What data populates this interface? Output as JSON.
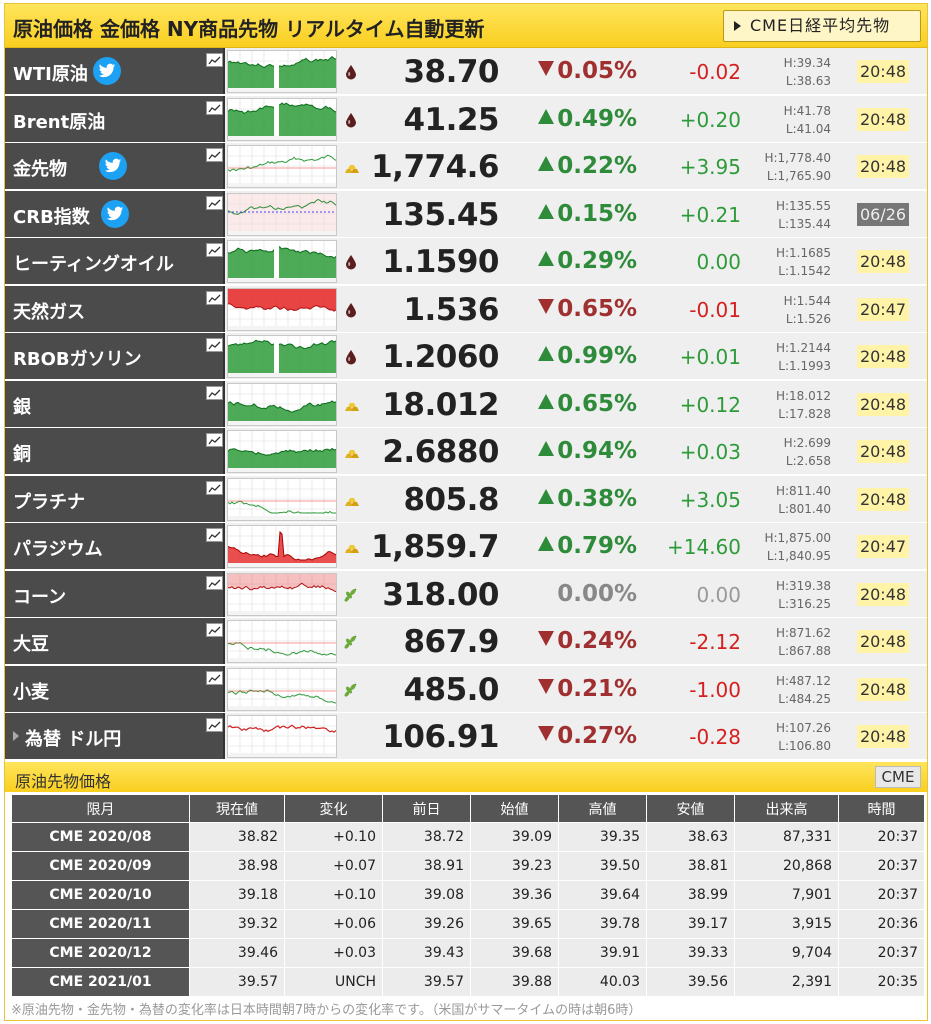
{
  "header": {
    "title": "原油価格 金価格 NY商品先物 リアルタイム自動更新",
    "cme_button": "CME日経平均先物"
  },
  "rows": [
    {
      "name": "WTI原油",
      "twitter": true,
      "icon": "oil-drop",
      "price": "38.70",
      "dir": "dn",
      "pct": "0.05%",
      "chg": "-0.02",
      "high": "H:39.34",
      "low": "L:38.63",
      "time": "20:48",
      "chart": "green"
    },
    {
      "name": "Brent原油",
      "twitter": false,
      "icon": "oil-drop",
      "price": "41.25",
      "dir": "up",
      "pct": "0.49%",
      "chg": "+0.20",
      "high": "H:41.78",
      "low": "L:41.04",
      "time": "20:48",
      "chart": "green"
    },
    {
      "name": "金先物",
      "twitter": true,
      "icon": "gold-bar",
      "price": "1,774.6",
      "dir": "up",
      "pct": "0.22%",
      "chg": "+3.95",
      "high": "H:1,778.40",
      "low": "L:1,765.90",
      "time": "20:48",
      "chart": "line"
    },
    {
      "name": "CRB指数",
      "twitter": true,
      "icon": "",
      "price": "135.45",
      "dir": "up",
      "pct": "0.15%",
      "chg": "+0.21",
      "high": "H:135.55",
      "low": "L:135.44",
      "time": "06/26",
      "chart": "crb",
      "closed": true
    },
    {
      "name": "ヒーティングオイル",
      "twitter": false,
      "icon": "oil-drop",
      "price": "1.1590",
      "dir": "up",
      "pct": "0.29%",
      "chg": "0.00",
      "high": "H:1.1685",
      "low": "L:1.1542",
      "time": "20:48",
      "chart": "green"
    },
    {
      "name": "天然ガス",
      "twitter": false,
      "icon": "oil-drop",
      "price": "1.536",
      "dir": "dn",
      "pct": "0.65%",
      "chg": "-0.01",
      "high": "H:1.544",
      "low": "L:1.526",
      "time": "20:47",
      "chart": "red"
    },
    {
      "name": "RBOBガソリン",
      "twitter": false,
      "icon": "oil-drop",
      "price": "1.2060",
      "dir": "up",
      "pct": "0.99%",
      "chg": "+0.01",
      "high": "H:1.2144",
      "low": "L:1.1993",
      "time": "20:48",
      "chart": "green"
    },
    {
      "name": "銀",
      "twitter": false,
      "icon": "gold-bar",
      "price": "18.012",
      "dir": "up",
      "pct": "0.65%",
      "chg": "+0.12",
      "high": "H:18.012",
      "low": "L:17.828",
      "time": "20:48",
      "chart": "greenlow"
    },
    {
      "name": "銅",
      "twitter": false,
      "icon": "gold-bar",
      "price": "2.6880",
      "dir": "up",
      "pct": "0.94%",
      "chg": "+0.03",
      "high": "H:2.699",
      "low": "L:2.658",
      "time": "20:48",
      "chart": "greenlow"
    },
    {
      "name": "プラチナ",
      "twitter": false,
      "icon": "gold-bar",
      "price": "805.8",
      "dir": "up",
      "pct": "0.38%",
      "chg": "+3.05",
      "high": "H:811.40",
      "low": "L:801.40",
      "time": "20:48",
      "chart": "line"
    },
    {
      "name": "パラジウム",
      "twitter": false,
      "icon": "gold-bar",
      "price": "1,859.7",
      "dir": "up",
      "pct": "0.79%",
      "chg": "+14.60",
      "high": "H:1,875.00",
      "low": "L:1,840.95",
      "time": "20:47",
      "chart": "redspike"
    },
    {
      "name": "コーン",
      "twitter": false,
      "icon": "leaf",
      "price": "318.00",
      "dir": "flat",
      "pct": "0.00%",
      "chg": "0.00",
      "high": "H:319.38",
      "low": "L:316.25",
      "time": "20:48",
      "chart": "redflat"
    },
    {
      "name": "大豆",
      "twitter": false,
      "icon": "leaf",
      "price": "867.9",
      "dir": "dn",
      "pct": "0.24%",
      "chg": "-2.12",
      "high": "H:871.62",
      "low": "L:867.88",
      "time": "20:48",
      "chart": "line"
    },
    {
      "name": "小麦",
      "twitter": false,
      "icon": "leaf",
      "price": "485.0",
      "dir": "dn",
      "pct": "0.21%",
      "chg": "-1.00",
      "high": "H:487.12",
      "low": "L:484.25",
      "time": "20:48",
      "chart": "line"
    },
    {
      "name": "為替 ドル円",
      "twitter": false,
      "icon": "",
      "price": "106.91",
      "dir": "dn",
      "pct": "0.27%",
      "chg": "-0.28",
      "high": "H:107.26",
      "low": "L:106.80",
      "time": "20:48",
      "chart": "redline",
      "fx": true
    }
  ],
  "futures": {
    "title": "原油先物価格",
    "cme_label": "CME",
    "headers": [
      "限月",
      "現在値",
      "変化",
      "前日",
      "始値",
      "高値",
      "安値",
      "出来高",
      "時間"
    ],
    "rows": [
      [
        "CME 2020/08",
        "38.82",
        "+0.10",
        "38.72",
        "39.09",
        "39.35",
        "38.63",
        "87,331",
        "20:37"
      ],
      [
        "CME 2020/09",
        "38.98",
        "+0.07",
        "38.91",
        "39.23",
        "39.50",
        "38.81",
        "20,868",
        "20:37"
      ],
      [
        "CME 2020/10",
        "39.18",
        "+0.10",
        "39.08",
        "39.36",
        "39.64",
        "38.99",
        "7,901",
        "20:37"
      ],
      [
        "CME 2020/11",
        "39.32",
        "+0.06",
        "39.26",
        "39.65",
        "39.78",
        "39.17",
        "3,915",
        "20:36"
      ],
      [
        "CME 2020/12",
        "39.46",
        "+0.03",
        "39.43",
        "39.68",
        "39.91",
        "39.33",
        "9,704",
        "20:37"
      ],
      [
        "CME 2021/01",
        "39.57",
        "UNCH",
        "39.57",
        "39.88",
        "40.03",
        "39.56",
        "2,391",
        "20:35"
      ]
    ]
  },
  "note": "※原油先物・金先物・為替の変化率は日本時間朝7時からの変化率です。（米国がサマータイムの時は朝6時）"
}
